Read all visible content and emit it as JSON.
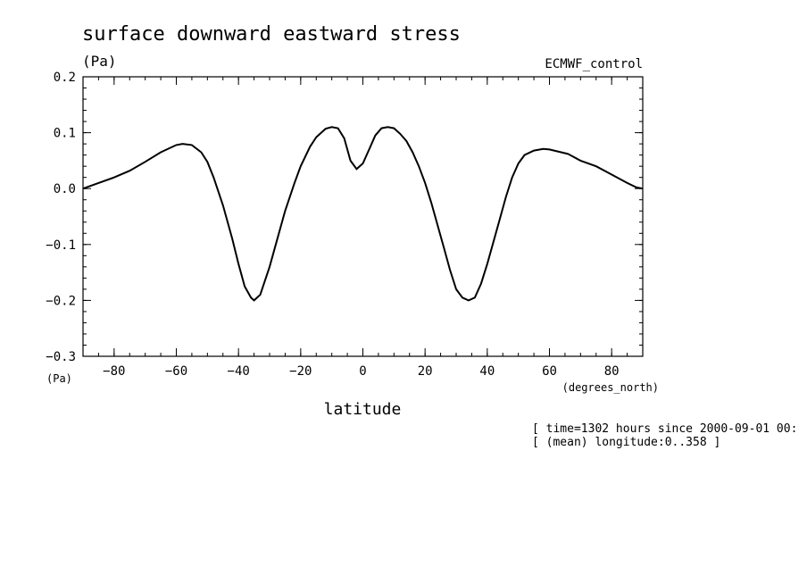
{
  "chart_data": {
    "type": "line",
    "title": "surface downward eastward stress",
    "ylabel": "(Pa)",
    "ylabel_bottom": "(Pa)",
    "source_label": "ECMWF_control",
    "xlabel": "latitude",
    "xunit": "(degrees_north)",
    "xlim": [
      -90,
      90
    ],
    "ylim": [
      -0.3,
      0.2
    ],
    "x_ticks": [
      -80,
      -60,
      -40,
      -20,
      0,
      20,
      40,
      60,
      80
    ],
    "y_ticks": [
      -0.3,
      -0.2,
      -0.1,
      0.0,
      0.1,
      0.2
    ],
    "x_tick_labels": [
      "−80",
      "−60",
      "−40",
      "−20",
      "0",
      "20",
      "40",
      "60",
      "80"
    ],
    "y_tick_labels": [
      "−0.3",
      "−0.2",
      "−0.1",
      "0.0",
      "0.1",
      "0.2"
    ],
    "grid": false,
    "info_lines": [
      "[ time=1302 hours since 2000-09-01 00:",
      "[ (mean) longitude:0..358 ]"
    ],
    "series": [
      {
        "x": [
          -90,
          -85,
          -80,
          -75,
          -70,
          -65,
          -60,
          -58,
          -55,
          -52,
          -50,
          -48,
          -45,
          -42,
          -40,
          -38,
          -36,
          -35,
          -33,
          -30,
          -27,
          -25,
          -22,
          -20,
          -17,
          -15,
          -12,
          -10,
          -8,
          -6,
          -4,
          -2,
          0,
          2,
          4,
          6,
          8,
          10,
          12,
          14,
          16,
          18,
          20,
          22,
          24,
          26,
          28,
          30,
          32,
          34,
          36,
          38,
          40,
          42,
          44,
          46,
          48,
          50,
          52,
          55,
          58,
          60,
          63,
          66,
          70,
          75,
          80,
          85,
          88,
          90
        ],
        "y": [
          0.0,
          0.01,
          0.02,
          0.032,
          0.048,
          0.065,
          0.078,
          0.08,
          0.078,
          0.065,
          0.048,
          0.02,
          -0.03,
          -0.09,
          -0.135,
          -0.175,
          -0.195,
          -0.2,
          -0.19,
          -0.14,
          -0.08,
          -0.04,
          0.01,
          0.04,
          0.075,
          0.092,
          0.107,
          0.11,
          0.108,
          0.09,
          0.05,
          0.035,
          0.045,
          0.07,
          0.095,
          0.108,
          0.11,
          0.108,
          0.098,
          0.085,
          0.065,
          0.04,
          0.01,
          -0.025,
          -0.065,
          -0.105,
          -0.145,
          -0.18,
          -0.195,
          -0.2,
          -0.195,
          -0.17,
          -0.135,
          -0.095,
          -0.055,
          -0.015,
          0.02,
          0.045,
          0.06,
          0.068,
          0.071,
          0.07,
          0.066,
          0.062,
          0.05,
          0.04,
          0.025,
          0.01,
          0.002,
          0.0
        ]
      }
    ]
  }
}
